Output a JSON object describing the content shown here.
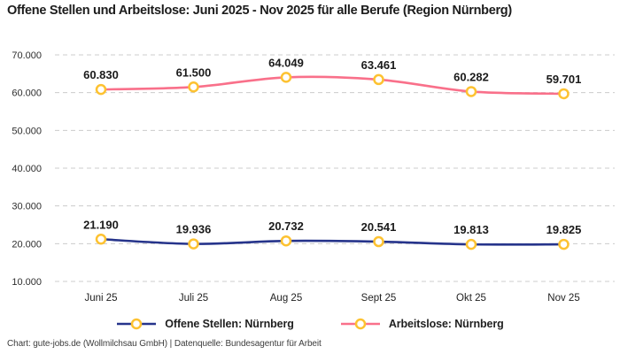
{
  "title": "Offene Stellen und Arbeitslose: Juni 2025 - Nov 2025 für alle Berufe (Region Nürnberg)",
  "footer": "Chart: gute-jobs.de (Wollmilchsau GmbH) | Datenquelle: Bundesagentur für Arbeit",
  "colors": {
    "background": "#ffffff",
    "grid": "#cccccc",
    "data_label_text": "#1a1a1a",
    "axis_text": "#2e2e2e",
    "marker_fill": "#ffffff",
    "marker_stroke": "#fdc231"
  },
  "chart_data": {
    "type": "line",
    "title": "Offene Stellen und Arbeitslose: Juni 2025 - Nov 2025 für alle Berufe (Region Nürnberg)",
    "categories": [
      "Juni 25",
      "Juli 25",
      "Aug 25",
      "Sept 25",
      "Okt 25",
      "Nov 25"
    ],
    "series": [
      {
        "name": "Offene Stellen: Nürnberg",
        "color": "#26348b",
        "values": [
          21190,
          19936,
          20732,
          20541,
          19813,
          19825
        ],
        "value_labels": [
          "21.190",
          "19.936",
          "20.732",
          "20.541",
          "19.813",
          "19.825"
        ]
      },
      {
        "name": "Arbeitslose: Nürnberg",
        "color": "#f9708a",
        "values": [
          60830,
          61500,
          64049,
          63461,
          60282,
          59701
        ],
        "value_labels": [
          "60.830",
          "61.500",
          "64.049",
          "63.461",
          "60.282",
          "59.701"
        ]
      }
    ],
    "y_ticks": [
      {
        "value": 70000,
        "label": "70.000"
      },
      {
        "value": 60000,
        "label": "60.000"
      },
      {
        "value": 50000,
        "label": "50.000"
      },
      {
        "value": 40000,
        "label": "40.000"
      },
      {
        "value": 30000,
        "label": "30.000"
      },
      {
        "value": 20000,
        "label": "20.000"
      },
      {
        "value": 10000,
        "label": "10.000"
      }
    ],
    "ylim": [
      10000,
      70000
    ],
    "xlabel": "",
    "ylabel": "",
    "grid": "horizontal-dashed",
    "legend_position": "bottom",
    "marker": {
      "shape": "circle",
      "fill": "#ffffff",
      "stroke": "#fdc231"
    }
  }
}
